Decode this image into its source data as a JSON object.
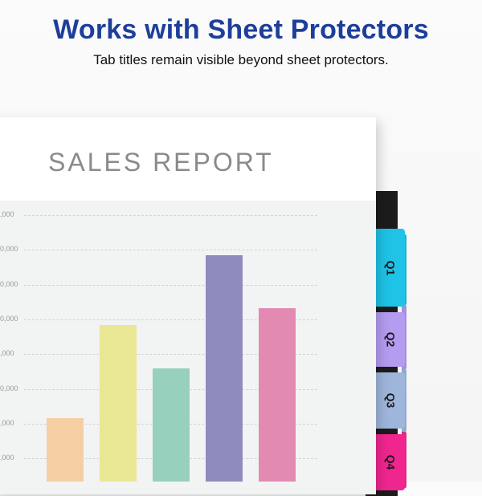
{
  "header": {
    "title": "Works with Sheet Protectors",
    "subtitle": "Tab titles remain visible beyond sheet protectors."
  },
  "page": {
    "report_title": "SALES REPORT"
  },
  "chart_data": {
    "type": "bar",
    "title": "",
    "xlabel": "",
    "ylabel": "",
    "y_tick_labels": [
      ",000",
      "0,000",
      "0,000",
      "0,000",
      ",000",
      "0,000",
      ",000",
      ",000"
    ],
    "ylim": [
      0,
      8
    ],
    "categories": [
      "",
      "",
      "",
      "",
      ""
    ],
    "values": [
      1.9,
      4.7,
      3.4,
      6.8,
      5.2
    ],
    "colors": [
      "#f5cfa3",
      "#e9e794",
      "#97d0bc",
      "#8f8bbe",
      "#e28ab2"
    ],
    "grid": true
  },
  "tabs": [
    {
      "label": "Q1",
      "color": "#1ec3e6"
    },
    {
      "label": "Q2",
      "color": "#b49cf0"
    },
    {
      "label": "Q3",
      "color": "#9fb6dc"
    },
    {
      "label": "Q4",
      "color": "#f0268f"
    }
  ]
}
